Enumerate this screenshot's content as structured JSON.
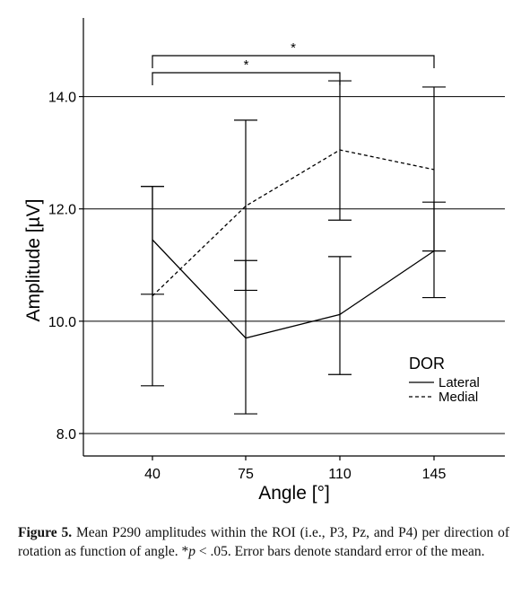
{
  "chart_data": {
    "type": "line",
    "xlabel": "Angle [°]",
    "ylabel": "Amplitude [µV]",
    "categories": [
      "40",
      "75",
      "110",
      "145"
    ],
    "ylim": [
      7.6,
      15.4
    ],
    "yticks": [
      8.0,
      10.0,
      12.0,
      14.0
    ],
    "ytick_labels": [
      "8.0",
      "10.0",
      "12.0",
      "14.0"
    ],
    "grid": "horizontal",
    "legend": {
      "title": "DOR",
      "position": "bottom-right",
      "entries": [
        "Lateral",
        "Medial"
      ]
    },
    "series": [
      {
        "name": "Lateral",
        "style": "solid",
        "values": [
          11.45,
          9.7,
          10.12,
          11.25
        ],
        "err_low": [
          8.85,
          8.35,
          9.05,
          10.42
        ],
        "err_high": [
          12.4,
          11.08,
          11.15,
          12.12
        ]
      },
      {
        "name": "Medial",
        "style": "dashed",
        "values": [
          10.45,
          12.05,
          13.05,
          12.7
        ],
        "err_low": [
          10.48,
          10.55,
          11.8,
          11.25
        ],
        "err_high": [
          12.4,
          13.58,
          14.28,
          14.17
        ]
      }
    ],
    "significance": [
      {
        "from": "40",
        "to": "110",
        "label": "*"
      },
      {
        "from": "40",
        "to": "145",
        "label": "*"
      }
    ],
    "colors": {
      "line": "#000000",
      "grid": "#000000",
      "background": "#ffffff"
    }
  },
  "caption": {
    "label": "Figure 5.",
    "text1": "Mean P290 amplitudes within the ROI (i.e., P3, Pz, and P4) per direction of rotation as function of angle. *",
    "p": "p",
    "text2": " < .05. Error bars denote standard error of the mean."
  }
}
